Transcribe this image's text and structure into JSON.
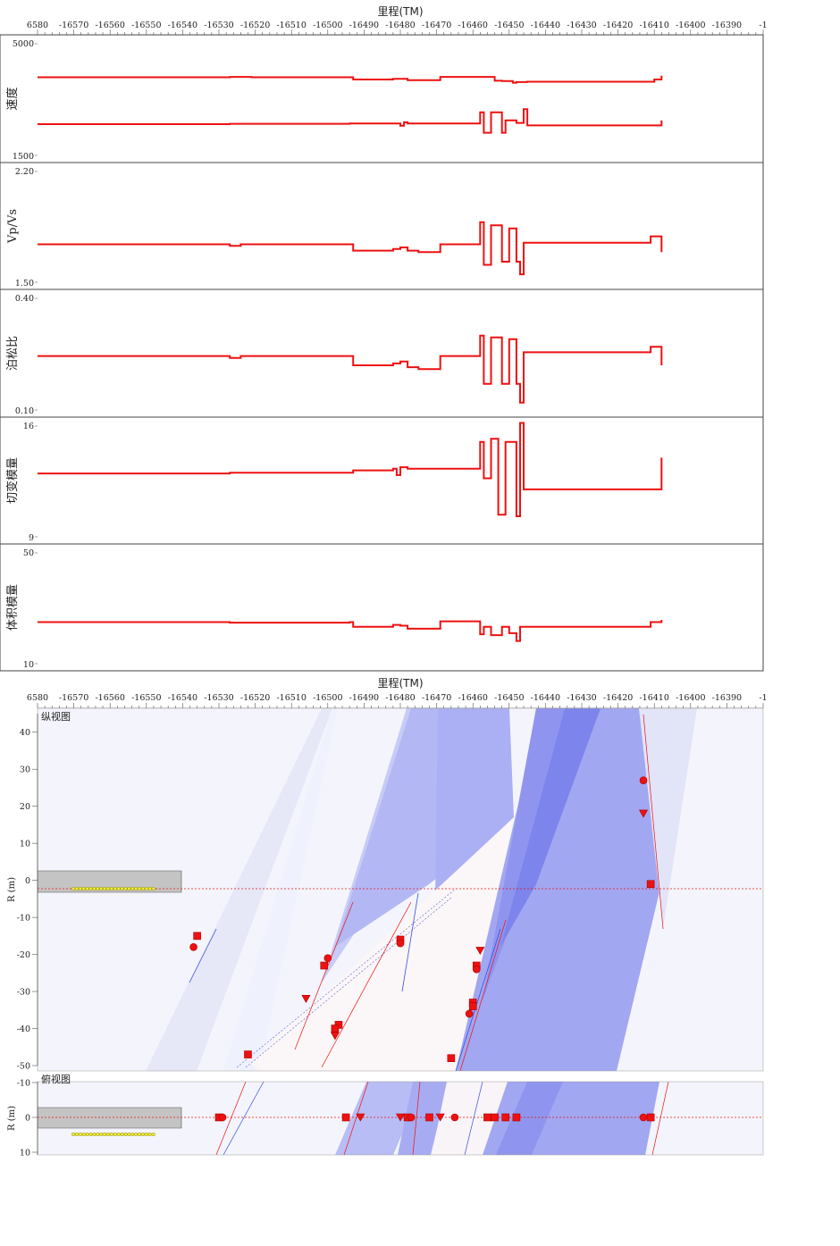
{
  "chart_data": {
    "type": "line",
    "xlabel": "里程(TM)",
    "xlim": [
      -16580,
      -16380
    ],
    "x_ticks": [
      "6580",
      "-16570",
      "-16560",
      "-16550",
      "-16540",
      "-16530",
      "-16520",
      "-16510",
      "-16500",
      "-16490",
      "-16480",
      "-16470",
      "-16460",
      "-16450",
      "-16440",
      "-16430",
      "-16420",
      "-16410",
      "-16400",
      "-16390",
      "-1"
    ],
    "colors": {
      "line": "#ee1111",
      "grid": "#444444",
      "band": "#6d72f2",
      "pale": "#eceefb"
    },
    "panels": [
      {
        "ylabel": "速度",
        "ylim": [
          1500,
          5000
        ],
        "y_ticks": [
          "5000",
          "1500"
        ],
        "series": [
          {
            "x": [
              -16580,
              -16530,
              -16527,
              -16521,
              -16494,
              -16493,
              -16484,
              -16482,
              -16479,
              -16478,
              -16470,
              -16469,
              -16459,
              -16454,
              -16452,
              -16449,
              -16448,
              -16445,
              -16411,
              -16410,
              -16408
            ],
            "y": [
              3950,
              3950,
              3960,
              3950,
              3950,
              3880,
              3880,
              3900,
              3900,
              3860,
              3860,
              3960,
              3960,
              3840,
              3830,
              3780,
              3800,
              3810,
              3810,
              3880,
              4000
            ]
          },
          {
            "x": [
              -16580,
              -16530,
              -16527,
              -16494,
              -16482,
              -16480,
              -16479,
              -16478,
              -16470,
              -16459,
              -16458,
              -16457,
              -16455,
              -16452,
              -16451,
              -16448,
              -16446,
              -16445,
              -16411,
              -16408
            ],
            "y": [
              2480,
              2480,
              2490,
              2500,
              2500,
              2430,
              2540,
              2500,
              2500,
              2500,
              2850,
              2210,
              2850,
              2210,
              2600,
              2520,
              2950,
              2440,
              2440,
              2600
            ]
          }
        ]
      },
      {
        "ylabel": "Vp/Vs",
        "ylim": [
          1.5,
          2.2
        ],
        "y_ticks": [
          "2.20",
          "1.50"
        ],
        "series": [
          {
            "x": [
              -16580,
              -16530,
              -16527,
              -16524,
              -16494,
              -16493,
              -16484,
              -16482,
              -16480,
              -16478,
              -16475,
              -16470,
              -16469,
              -16459,
              -16458,
              -16457,
              -16455,
              -16452,
              -16450,
              -16448,
              -16447,
              -16446,
              -16412,
              -16411,
              -16408
            ],
            "y": [
              1.74,
              1.74,
              1.73,
              1.74,
              1.74,
              1.7,
              1.7,
              1.71,
              1.72,
              1.7,
              1.69,
              1.69,
              1.74,
              1.74,
              1.88,
              1.61,
              1.86,
              1.63,
              1.84,
              1.63,
              1.55,
              1.75,
              1.75,
              1.79,
              1.69
            ]
          }
        ]
      },
      {
        "ylabel": "泊松比",
        "ylim": [
          0.1,
          0.4
        ],
        "y_ticks": [
          "0.40",
          "0.10"
        ],
        "series": [
          {
            "x": [
              -16580,
              -16530,
              -16527,
              -16524,
              -16494,
              -16493,
              -16484,
              -16482,
              -16480,
              -16478,
              -16475,
              -16470,
              -16469,
              -16459,
              -16458,
              -16457,
              -16455,
              -16452,
              -16450,
              -16448,
              -16447,
              -16446,
              -16412,
              -16411,
              -16408
            ],
            "y": [
              0.245,
              0.245,
              0.24,
              0.245,
              0.245,
              0.22,
              0.22,
              0.225,
              0.23,
              0.215,
              0.21,
              0.21,
              0.245,
              0.245,
              0.3,
              0.17,
              0.295,
              0.17,
              0.29,
              0.17,
              0.12,
              0.255,
              0.255,
              0.27,
              0.22
            ]
          }
        ]
      },
      {
        "ylabel": "切变模量",
        "ylim": [
          9,
          16
        ],
        "y_ticks": [
          "16",
          "9"
        ],
        "series": [
          {
            "x": [
              -16580,
              -16530,
              -16527,
              -16494,
              -16493,
              -16484,
              -16482,
              -16481,
              -16480,
              -16478,
              -16470,
              -16459,
              -16458,
              -16457,
              -16455,
              -16453,
              -16451,
              -16448,
              -16447,
              -16446,
              -16412,
              -16411,
              -16408
            ],
            "y": [
              13.0,
              13.0,
              13.05,
              13.05,
              13.2,
              13.2,
              13.3,
              12.9,
              13.4,
              13.3,
              13.3,
              13.3,
              15.0,
              12.7,
              15.2,
              10.4,
              15.0,
              10.3,
              16.2,
              12.0,
              12.0,
              12.0,
              14.0
            ]
          }
        ]
      },
      {
        "ylabel": "体积模量",
        "ylim": [
          10,
          50
        ],
        "y_ticks": [
          "50",
          "10"
        ],
        "series": [
          {
            "x": [
              -16580,
              -16530,
              -16527,
              -16494,
              -16493,
              -16484,
              -16482,
              -16480,
              -16478,
              -16470,
              -16469,
              -16459,
              -16458,
              -16457,
              -16455,
              -16452,
              -16450,
              -16448,
              -16447,
              -16446,
              -16412,
              -16411,
              -16408
            ],
            "y": [
              25.0,
              25.0,
              24.8,
              25.0,
              23.3,
              23.3,
              24.0,
              23.7,
              22.6,
              22.6,
              25.3,
              25.3,
              20.6,
              23.3,
              20.3,
              23.3,
              21.0,
              18.2,
              23.3,
              23.3,
              23.3,
              25.0,
              25.8
            ]
          }
        ]
      }
    ],
    "side_view": {
      "label": "纵视图",
      "ylabel": "R (m)",
      "ylim": [
        -50,
        45
      ],
      "y_ticks": [
        "40",
        "30",
        "20",
        "10",
        "0",
        "-10",
        "-20",
        "-30",
        "-40",
        "-50"
      ],
      "y_tick_values": [
        40,
        30,
        20,
        10,
        0,
        -10,
        -20,
        -30,
        -40,
        -50
      ],
      "markers": [
        {
          "shape": "square",
          "x": -16536,
          "y": -15
        },
        {
          "shape": "circle",
          "x": -16537,
          "y": -18
        },
        {
          "shape": "square",
          "x": -16522,
          "y": -47
        },
        {
          "shape": "circle",
          "x": -16500,
          "y": -21
        },
        {
          "shape": "square",
          "x": -16501,
          "y": -23
        },
        {
          "shape": "triangle",
          "x": -16506,
          "y": -32
        },
        {
          "shape": "square",
          "x": -16497,
          "y": -39
        },
        {
          "shape": "square",
          "x": -16498,
          "y": -40
        },
        {
          "shape": "triangle",
          "x": -16498,
          "y": -42
        },
        {
          "shape": "square",
          "x": -16480,
          "y": -16
        },
        {
          "shape": "circle",
          "x": -16480,
          "y": -17
        },
        {
          "shape": "triangle",
          "x": -16458,
          "y": -19
        },
        {
          "shape": "square",
          "x": -16459,
          "y": -23
        },
        {
          "shape": "circle",
          "x": -16459,
          "y": -24
        },
        {
          "shape": "square",
          "x": -16460,
          "y": -33
        },
        {
          "shape": "square",
          "x": -16460,
          "y": -34
        },
        {
          "shape": "circle",
          "x": -16461,
          "y": -36
        },
        {
          "shape": "square",
          "x": -16466,
          "y": -48
        },
        {
          "shape": "circle",
          "x": -16413,
          "y": 27
        },
        {
          "shape": "triangle",
          "x": -16413,
          "y": 18
        },
        {
          "shape": "square",
          "x": -16411,
          "y": -1
        }
      ]
    },
    "top_view": {
      "label": "俯视图",
      "ylabel": "R (m)",
      "ylim": [
        -10,
        10
      ],
      "y_ticks": [
        "-10",
        "0",
        "10"
      ],
      "y_tick_values": [
        -10,
        0,
        10
      ],
      "markers": [
        {
          "shape": "square",
          "x": -16530,
          "y": 0
        },
        {
          "shape": "circle",
          "x": -16529,
          "y": 0
        },
        {
          "shape": "square",
          "x": -16495,
          "y": 0
        },
        {
          "shape": "triangle",
          "x": -16491,
          "y": 0
        },
        {
          "shape": "triangle",
          "x": -16480,
          "y": 0
        },
        {
          "shape": "square",
          "x": -16478,
          "y": 0
        },
        {
          "shape": "circle",
          "x": -16477,
          "y": 0
        },
        {
          "shape": "square",
          "x": -16472,
          "y": 0
        },
        {
          "shape": "triangle",
          "x": -16469,
          "y": 0
        },
        {
          "shape": "circle",
          "x": -16465,
          "y": 0
        },
        {
          "shape": "square",
          "x": -16456,
          "y": 0
        },
        {
          "shape": "square",
          "x": -16454,
          "y": 0
        },
        {
          "shape": "square",
          "x": -16451,
          "y": 0
        },
        {
          "shape": "square",
          "x": -16448,
          "y": 0
        },
        {
          "shape": "circle",
          "x": -16413,
          "y": 0
        },
        {
          "shape": "square",
          "x": -16411,
          "y": 0
        }
      ]
    }
  }
}
